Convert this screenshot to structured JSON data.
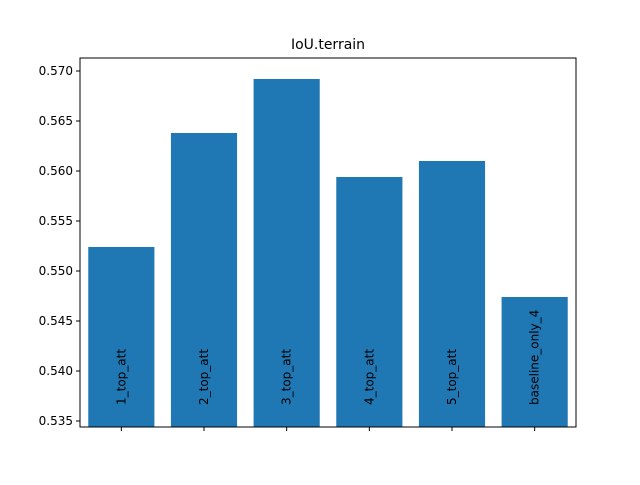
{
  "chart_data": {
    "type": "bar",
    "title": "IoU.terrain",
    "xlabel": "",
    "ylabel": "",
    "categories": [
      "1_top_att",
      "2_top_att",
      "3_top_att",
      "4_top_att",
      "5_top_att",
      "baseline_only_4"
    ],
    "values": [
      0.5524,
      0.5638,
      0.5692,
      0.5594,
      0.561,
      0.5474
    ],
    "ylim": [
      0.5344,
      0.5713
    ],
    "yticks": [
      0.535,
      0.54,
      0.545,
      0.55,
      0.555,
      0.56,
      0.565,
      0.57
    ],
    "ytick_labels": [
      "0.535",
      "0.540",
      "0.545",
      "0.550",
      "0.555",
      "0.560",
      "0.565",
      "0.570"
    ],
    "bar_color": "#1f77b4",
    "labels_inside_bars": true,
    "grid": false,
    "legend": "none"
  }
}
